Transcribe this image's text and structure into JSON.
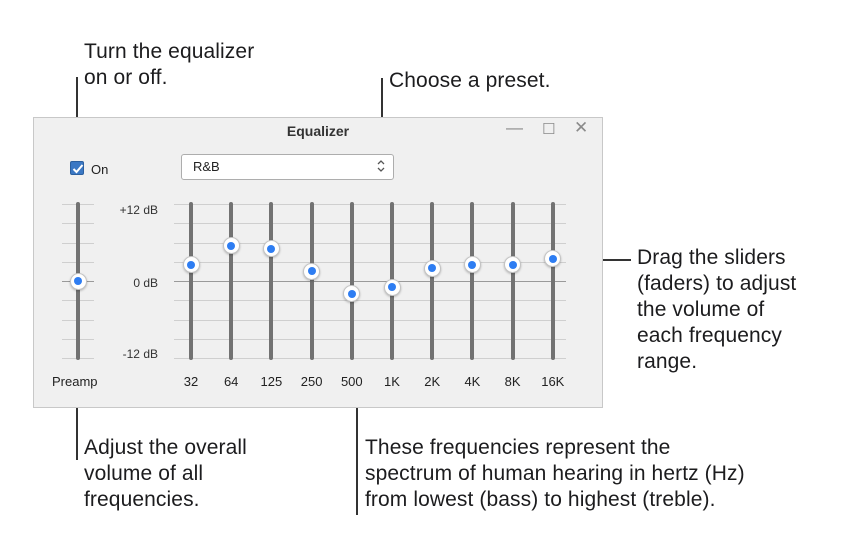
{
  "callouts": {
    "toggle": "Turn the equalizer\non or off.",
    "preset": "Choose a preset.",
    "sliders": "Drag the sliders\n(faders) to adjust\nthe volume of\neach frequency\nrange.",
    "preamp": "Adjust the overall\nvolume of all\nfrequencies.",
    "frequencies": "These frequencies represent the\nspectrum of human hearing in hertz (Hz)\nfrom lowest (bass) to highest (treble)."
  },
  "window": {
    "title": "Equalizer",
    "minimize_icon": "minimize-icon",
    "maximize_icon": "maximize-icon",
    "close_icon": "close-icon"
  },
  "toggle": {
    "label": "On",
    "checked": true
  },
  "preset": {
    "selected": "R&B",
    "icon": "up-down-chevron-icon"
  },
  "db_scale": {
    "top": "+12 dB",
    "middle": "0 dB",
    "bottom": "-12 dB",
    "range_db": [
      -12,
      12
    ]
  },
  "preamp": {
    "label": "Preamp",
    "gain_db": 0
  },
  "bands": [
    {
      "label": "32",
      "gain_db": 2.5
    },
    {
      "label": "64",
      "gain_db": 5.5
    },
    {
      "label": "125",
      "gain_db": 5.0
    },
    {
      "label": "250",
      "gain_db": 1.5
    },
    {
      "label": "500",
      "gain_db": -2.0
    },
    {
      "label": "1K",
      "gain_db": -1.0
    },
    {
      "label": "2K",
      "gain_db": 2.0
    },
    {
      "label": "4K",
      "gain_db": 2.5
    },
    {
      "label": "8K",
      "gain_db": 2.5
    },
    {
      "label": "16K",
      "gain_db": 3.5
    }
  ],
  "colors": {
    "accent": "#2e7df2",
    "dialog_bg": "#f0f0f0",
    "track": "#727272"
  }
}
